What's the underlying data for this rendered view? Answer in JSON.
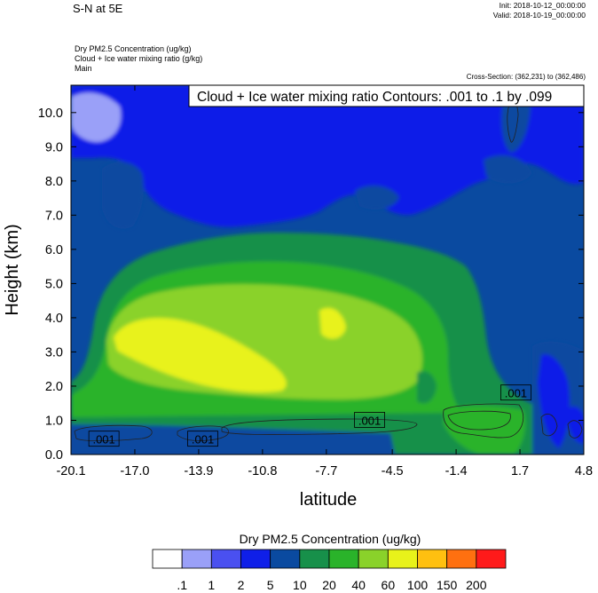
{
  "header": {
    "title": "S-N at 5E",
    "init": "Init: 2018-10-12_00:00:00",
    "valid": "Valid: 2018-10-19_00:00:00",
    "fields": [
      "Dry PM2.5 Concentration   (ug/kg)",
      "Cloud + Ice water mixing ratio   (g/kg)",
      "Main"
    ],
    "cross_section": "Cross-Section: (362,231) to (362,486)"
  },
  "chart_data": {
    "type": "heatmap",
    "title": "",
    "xlabel": "latitude",
    "ylabel": "Height (km)",
    "xlim": [
      -20.1,
      4.8
    ],
    "ylim": [
      0.0,
      10.8
    ],
    "x_ticks": [
      "-20.1",
      "-17.0",
      "-13.9",
      "-10.8",
      "-7.7",
      "-4.5",
      "-1.4",
      "1.7",
      "4.8"
    ],
    "y_ticks": [
      "0.0",
      "1.0",
      "2.0",
      "3.0",
      "4.0",
      "5.0",
      "6.0",
      "7.0",
      "8.0",
      "9.0",
      "10.0"
    ],
    "contour_info": "Cloud + Ice water mixing ratio Contours: .001 to .1 by .099",
    "contour_labels": [
      {
        "text": ".001",
        "lat": -18.5,
        "height": 0.45
      },
      {
        "text": ".001",
        "lat": -13.7,
        "height": 0.45
      },
      {
        "text": ".001",
        "lat": -5.6,
        "height": 1.0
      },
      {
        "text": ".001",
        "lat": 1.5,
        "height": 1.8
      }
    ],
    "colorbar": {
      "title": "Dry PM2.5 Concentration  (ug/kg)",
      "labels": [
        ".1",
        "1",
        "2",
        "5",
        "10",
        "20",
        "40",
        "60",
        "100",
        "150",
        "200"
      ],
      "colors": [
        "#ffffff",
        "#9aa0f8",
        "#4a50f0",
        "#0f1fe8",
        "#0a4aa0",
        "#17904a",
        "#2ab32a",
        "#8ad22a",
        "#e8f21a",
        "#ffc010",
        "#ff7010",
        "#ff1a1a"
      ]
    }
  }
}
